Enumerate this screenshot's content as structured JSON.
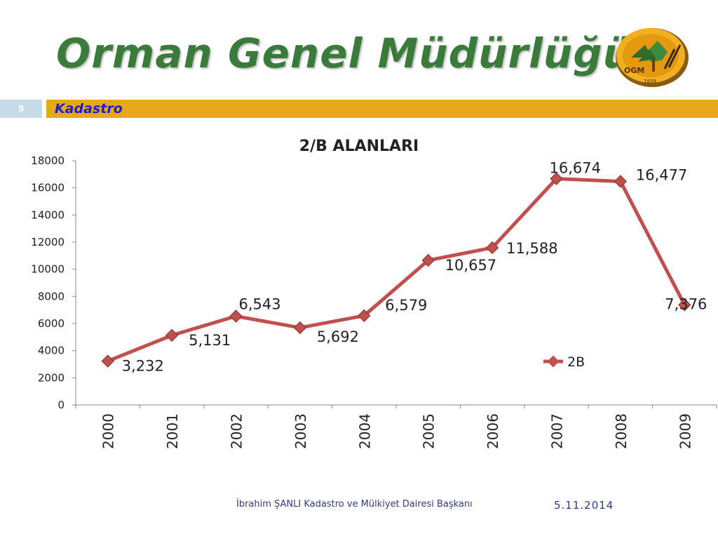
{
  "header": {
    "title": "Orman Genel Müdürlüğü",
    "logo_text": "OGM",
    "logo_year": "1839"
  },
  "section": {
    "slide_number": "9",
    "label": "Kadastro"
  },
  "footer": {
    "author": "İbrahim ŞANLI Kadastro ve Mülkiyet Dairesi Başkanı",
    "date": "5.11.2014"
  },
  "colors": {
    "title_green": "#3a7a3a",
    "section_bar": "#e6a817",
    "section_label": "#1f1fd0",
    "series_line": "#c0504d",
    "marker": "#c0504d"
  },
  "chart_data": {
    "type": "line",
    "title": "2/B ALANLARI",
    "categories": [
      "2000",
      "2001",
      "2002",
      "2003",
      "2004",
      "2005",
      "2006",
      "2007",
      "2008",
      "2009"
    ],
    "series": [
      {
        "name": "2B",
        "values": [
          3232,
          5131,
          6543,
          5692,
          6579,
          10657,
          11588,
          16674,
          16477,
          7376
        ]
      }
    ],
    "data_labels": [
      "3,232",
      "5,131",
      "6,543",
      "5,692",
      "6,579",
      "10,657",
      "11,588",
      "16,674",
      "16,477",
      "7,376"
    ],
    "y_ticks": [
      "0",
      "2000",
      "4000",
      "6000",
      "8000",
      "10000",
      "12000",
      "14000",
      "16000",
      "18000"
    ],
    "ylim": [
      0,
      18000
    ],
    "grid": false,
    "legend": "right",
    "xlabel": "",
    "ylabel": ""
  }
}
